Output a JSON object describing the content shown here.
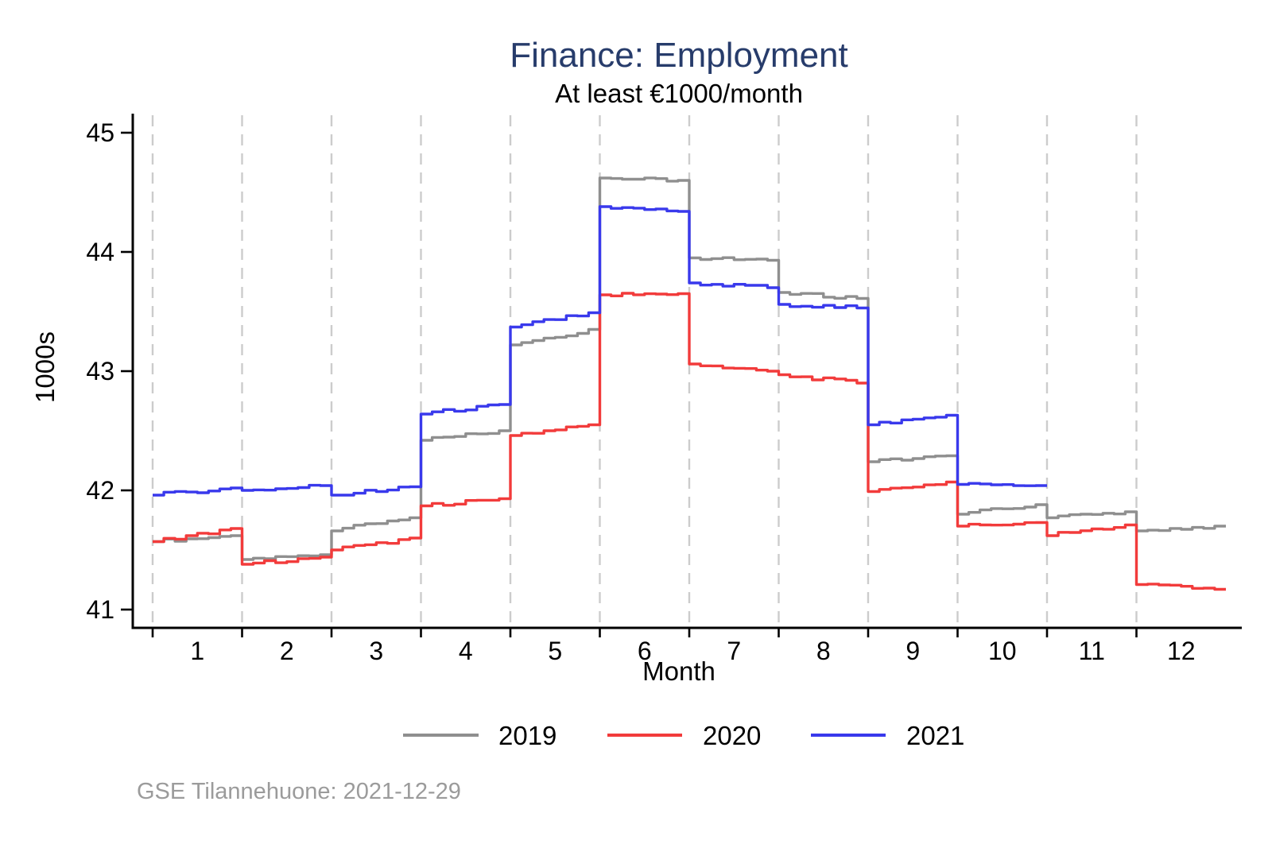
{
  "header": {
    "title": "Finance: Employment",
    "subtitle": "At least €1000/month"
  },
  "footer": {
    "source_note": "GSE Tilannehuone: 2021-12-29"
  },
  "colors": {
    "title": "#273c6b",
    "subtitle": "#000000",
    "axis": "#000000",
    "tick_label": "#000000",
    "gridline": "#cccccc",
    "footer": "#9b9b9b",
    "background": "#ffffff",
    "series_2019": "#8f8f8f",
    "series_2020": "#f23b3b",
    "series_2021": "#3939ec"
  },
  "chart_data": {
    "type": "line",
    "style": "step-line, daily wiggle, monthly level shifts at month boundaries",
    "title": "Finance: Employment",
    "subtitle": "At least €1000/month",
    "xlabel": "Month",
    "ylabel": "1000s",
    "x_ticks": [
      1,
      2,
      3,
      4,
      5,
      6,
      7,
      8,
      9,
      10,
      11,
      12
    ],
    "y_ticks": [
      41,
      42,
      43,
      44,
      45
    ],
    "xlim": [
      0.5,
      12.5
    ],
    "ylim": [
      40.85,
      45.15
    ],
    "grid": "vertical dashed gridlines at every month boundary (x = 0.5 … 11.5)",
    "legend_position": "bottom-center",
    "series": [
      {
        "name": "2019",
        "color": "#8f8f8f",
        "monthly_start_end": [
          [
            41.57,
            41.62
          ],
          [
            41.42,
            41.46
          ],
          [
            41.66,
            41.77
          ],
          [
            42.42,
            42.5
          ],
          [
            43.22,
            43.35
          ],
          [
            44.62,
            44.6
          ],
          [
            43.95,
            43.93
          ],
          [
            43.66,
            43.61
          ],
          [
            42.24,
            42.29
          ],
          [
            41.8,
            41.88
          ],
          [
            41.77,
            41.82
          ],
          [
            41.66,
            41.7
          ]
        ]
      },
      {
        "name": "2020",
        "color": "#f23b3b",
        "monthly_start_end": [
          [
            41.57,
            41.68
          ],
          [
            41.38,
            41.44
          ],
          [
            41.5,
            41.6
          ],
          [
            41.87,
            41.93
          ],
          [
            42.46,
            42.55
          ],
          [
            43.64,
            43.65
          ],
          [
            43.06,
            43.0
          ],
          [
            42.97,
            42.9
          ],
          [
            41.99,
            42.07
          ],
          [
            41.7,
            41.73
          ],
          [
            41.62,
            41.71
          ],
          [
            41.21,
            41.17
          ]
        ]
      },
      {
        "name": "2021",
        "color": "#3939ec",
        "monthly_start_end": [
          [
            41.96,
            42.02
          ],
          [
            42.0,
            42.04
          ],
          [
            41.96,
            42.03
          ],
          [
            42.64,
            42.72
          ],
          [
            43.37,
            43.49
          ],
          [
            44.38,
            44.34
          ],
          [
            43.74,
            43.7
          ],
          [
            43.56,
            43.53
          ],
          [
            42.55,
            42.63
          ],
          [
            42.05,
            42.04
          ],
          null,
          null
        ]
      }
    ]
  }
}
